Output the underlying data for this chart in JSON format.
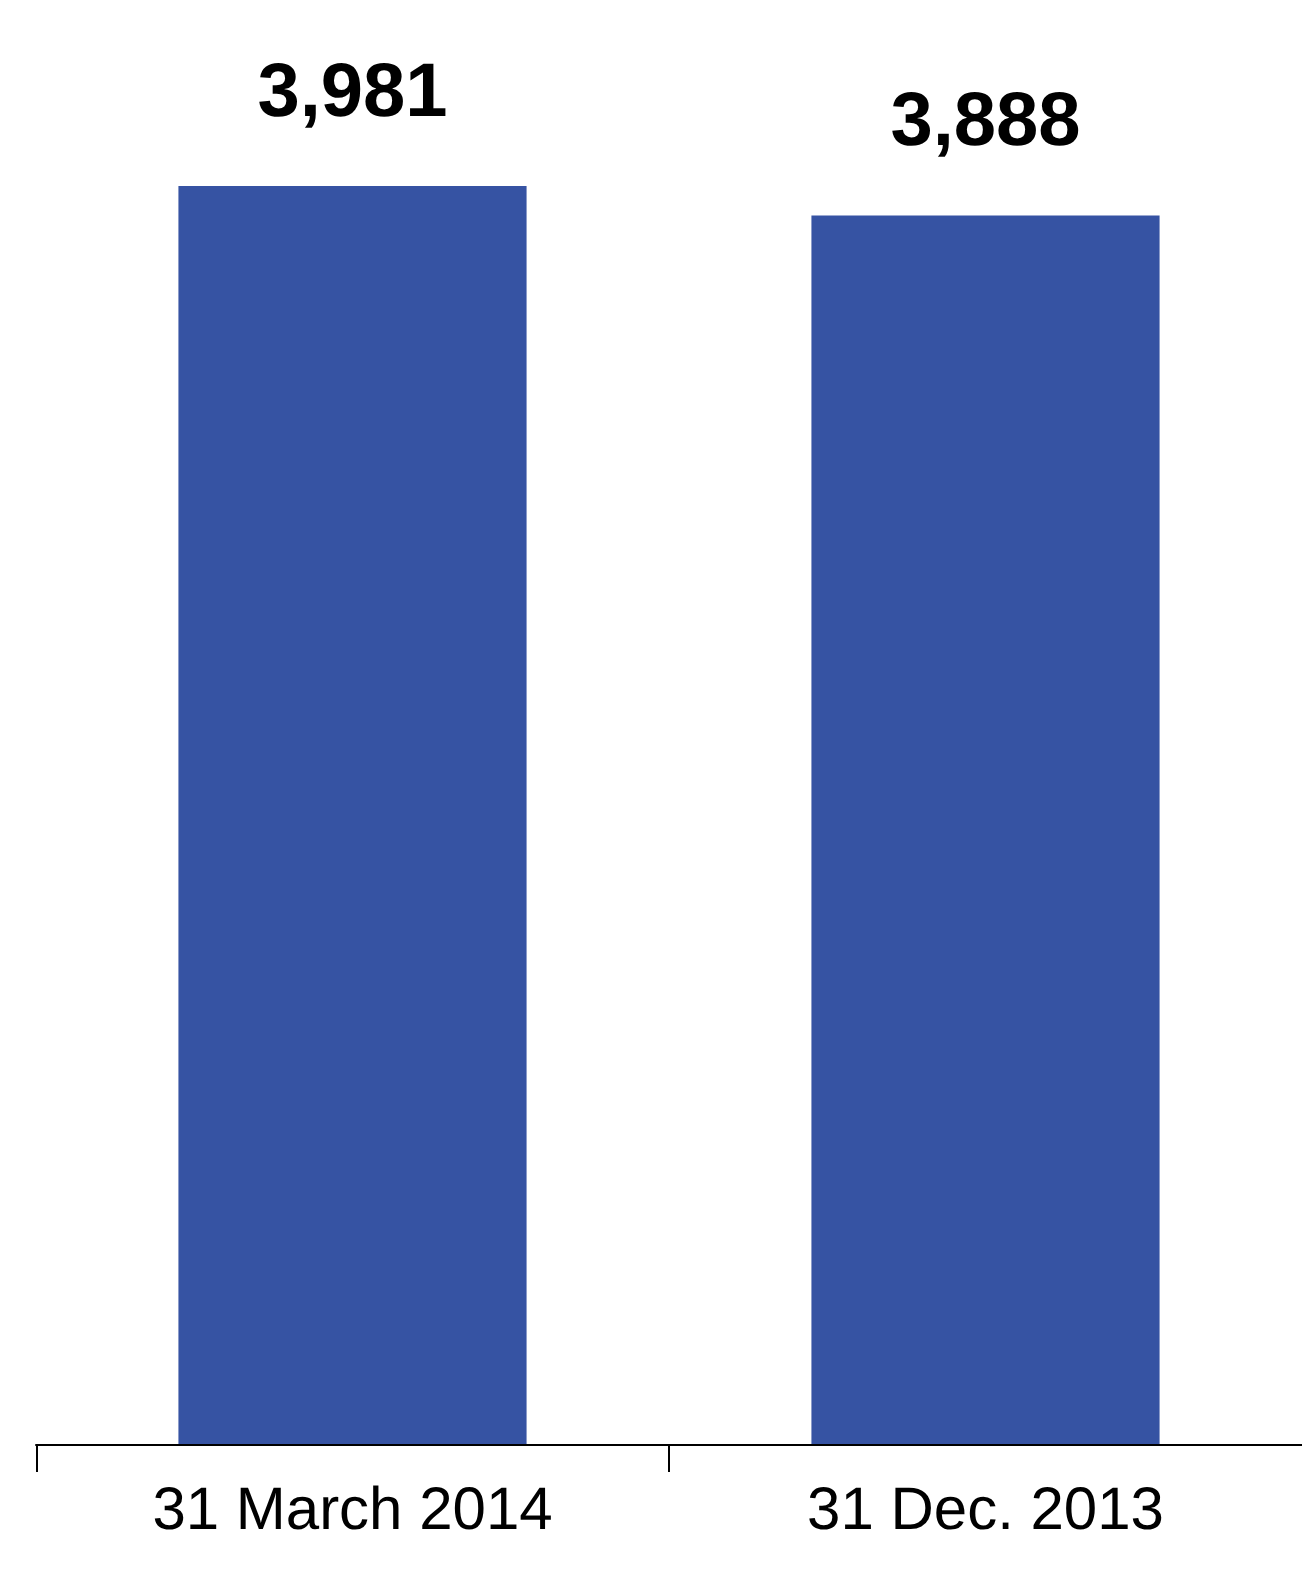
{
  "chart_data": {
    "type": "bar",
    "categories": [
      "31 March 2014",
      "31 Dec. 2013"
    ],
    "values": [
      3981,
      3888
    ],
    "value_labels": [
      "3,981",
      "3,888"
    ],
    "color": "#3653a3",
    "tick_labels": "x"
  }
}
